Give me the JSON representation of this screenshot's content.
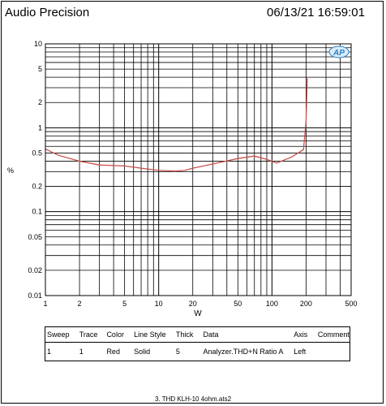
{
  "header": {
    "brand": "Audio Precision",
    "timestamp": "06/13/21 16:59:01"
  },
  "logo": {
    "text": "AP"
  },
  "colors": {
    "trace": "#c8504a",
    "grid": "#000000"
  },
  "chart_data": {
    "type": "line",
    "title": "",
    "xlabel": "W",
    "ylabel": "%",
    "x_scale": "log",
    "y_scale": "log",
    "xlim": [
      1,
      500
    ],
    "ylim": [
      0.01,
      10
    ],
    "x_ticks": [
      1,
      2,
      5,
      10,
      20,
      50,
      100,
      200,
      500
    ],
    "x_tick_labels": [
      "1",
      "2",
      "5",
      "10",
      "20",
      "50",
      "100",
      "200",
      "500"
    ],
    "y_ticks": [
      10,
      5,
      2,
      1,
      0.5,
      0.2,
      0.1,
      0.05,
      0.02,
      0.01
    ],
    "y_tick_labels": [
      "10",
      "5",
      "2",
      "1",
      "0.5",
      "0.2",
      "0.1",
      "0.05",
      "0.02",
      "0.01"
    ],
    "grid": true,
    "series": [
      {
        "color": "#c8504a",
        "x": [
          1,
          1.3,
          2,
          3,
          5,
          7,
          10,
          14,
          17,
          20,
          30,
          50,
          70,
          90,
          110,
          150,
          190,
          200,
          205
        ],
        "y": [
          0.56,
          0.47,
          0.4,
          0.36,
          0.35,
          0.33,
          0.31,
          0.305,
          0.31,
          0.33,
          0.37,
          0.43,
          0.46,
          0.42,
          0.38,
          0.45,
          0.55,
          1.2,
          3.9
        ]
      }
    ]
  },
  "sweep_table": {
    "headers": [
      "Sweep",
      "Trace",
      "Color",
      "Line Style",
      "Thick",
      "Data",
      "Axis",
      "Comment"
    ],
    "rows": [
      [
        "1",
        "1",
        "Red",
        "Solid",
        "5",
        "Analyzer.THD+N Ratio A",
        "Left",
        ""
      ]
    ]
  },
  "footer": {
    "filename": "3. THD KLH-10 4ohm.ats2"
  }
}
